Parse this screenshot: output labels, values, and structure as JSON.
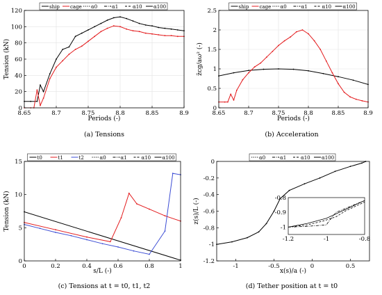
{
  "chart_data": [
    {
      "id": "a",
      "type": "line",
      "caption": "(a) Tensions",
      "xlabel": "Periods (-)",
      "ylabel": "Tension (kN)",
      "xlim": [
        8.65,
        8.9
      ],
      "ylim": [
        0,
        120
      ],
      "xticks": [
        8.65,
        8.7,
        8.75,
        8.8,
        8.85,
        8.9
      ],
      "xtick_labels": [
        "8.65",
        "8.7",
        "8.75",
        "8.8",
        "8.85",
        "8.9"
      ],
      "yticks": [
        0,
        20,
        40,
        60,
        80,
        100,
        120
      ],
      "ytick_labels": [
        "0",
        "20",
        "40",
        "60",
        "80",
        "100",
        "120"
      ],
      "grid": true,
      "legend_position": "top",
      "legend": [
        {
          "label": "ship",
          "color": "#000000",
          "dash": "solid"
        },
        {
          "label": "cage",
          "color": "#e31a1c",
          "dash": "solid"
        },
        {
          "label": "α0",
          "color": "#000000",
          "dash": "dotted"
        },
        {
          "label": "α1",
          "color": "#000000",
          "dash": "dashdot"
        },
        {
          "label": "α10",
          "color": "#000000",
          "dash": "dashed"
        },
        {
          "label": "α100",
          "color": "#000000",
          "dash": "solid"
        }
      ],
      "series": [
        {
          "name": "ship",
          "color": "#000000",
          "x": [
            8.65,
            8.66,
            8.67,
            8.675,
            8.68,
            8.69,
            8.7,
            8.71,
            8.72,
            8.73,
            8.74,
            8.75,
            8.76,
            8.77,
            8.78,
            8.79,
            8.8,
            8.81,
            8.82,
            8.83,
            8.84,
            8.85,
            8.86,
            8.87,
            8.88,
            8.89,
            8.9
          ],
          "y": [
            8,
            8,
            8,
            28,
            20,
            42,
            60,
            72,
            75,
            88,
            92,
            96,
            100,
            104,
            108,
            111,
            112,
            110,
            107,
            104,
            102,
            101,
            99,
            98,
            97,
            96,
            95
          ]
        },
        {
          "name": "cage",
          "color": "#e31a1c",
          "x": [
            8.65,
            8.66,
            8.665,
            8.67,
            8.675,
            8.68,
            8.69,
            8.7,
            8.71,
            8.72,
            8.73,
            8.74,
            8.75,
            8.76,
            8.77,
            8.78,
            8.79,
            8.8,
            8.81,
            8.82,
            8.83,
            8.84,
            8.85,
            8.86,
            8.87,
            8.88,
            8.89,
            8.9
          ],
          "y": [
            0,
            0,
            0,
            22,
            3,
            12,
            36,
            50,
            58,
            66,
            72,
            76,
            82,
            88,
            94,
            98,
            101,
            100,
            97,
            95,
            94,
            92,
            91,
            90,
            89,
            89,
            88,
            88
          ]
        }
      ]
    },
    {
      "id": "b",
      "type": "line",
      "caption": "(b) Acceleration",
      "xlabel": "Periods (-)",
      "ylabel": "z̈cg/aω² (-)",
      "xlim": [
        8.65,
        8.9
      ],
      "ylim": [
        0,
        2.5
      ],
      "xticks": [
        8.65,
        8.7,
        8.75,
        8.8,
        8.85,
        8.9
      ],
      "xtick_labels": [
        "8.65",
        "8.7",
        "8.75",
        "8.8",
        "8.85",
        "8.9"
      ],
      "yticks": [
        0,
        0.5,
        1,
        1.5,
        2,
        2.5
      ],
      "ytick_labels": [
        "0",
        "0.5",
        "1",
        "1.5",
        "2",
        "2.5"
      ],
      "grid": true,
      "legend_position": "top",
      "legend": [
        {
          "label": "ship",
          "color": "#000000",
          "dash": "solid"
        },
        {
          "label": "cage",
          "color": "#e31a1c",
          "dash": "solid"
        },
        {
          "label": "α0",
          "color": "#000000",
          "dash": "dotted"
        },
        {
          "label": "α1",
          "color": "#000000",
          "dash": "dashdot"
        },
        {
          "label": "α10",
          "color": "#000000",
          "dash": "dashed"
        },
        {
          "label": "α100",
          "color": "#000000",
          "dash": "solid"
        }
      ],
      "series": [
        {
          "name": "ship",
          "color": "#000000",
          "x": [
            8.65,
            8.675,
            8.7,
            8.725,
            8.75,
            8.775,
            8.8,
            8.825,
            8.85,
            8.875,
            8.9
          ],
          "y": [
            0.82,
            0.9,
            0.96,
            0.99,
            1.0,
            0.99,
            0.95,
            0.88,
            0.8,
            0.71,
            0.6
          ]
        },
        {
          "name": "cage",
          "color": "#e31a1c",
          "x": [
            8.65,
            8.66,
            8.665,
            8.67,
            8.675,
            8.68,
            8.69,
            8.7,
            8.71,
            8.72,
            8.73,
            8.74,
            8.75,
            8.76,
            8.77,
            8.78,
            8.79,
            8.8,
            8.81,
            8.82,
            8.83,
            8.84,
            8.85,
            8.86,
            8.87,
            8.88,
            8.89,
            8.9
          ],
          "y": [
            0.15,
            0.15,
            0.15,
            0.35,
            0.2,
            0.45,
            0.72,
            0.9,
            1.05,
            1.15,
            1.3,
            1.45,
            1.6,
            1.72,
            1.82,
            1.95,
            2.0,
            1.9,
            1.72,
            1.5,
            1.2,
            0.9,
            0.62,
            0.4,
            0.28,
            0.22,
            0.18,
            0.15
          ]
        }
      ]
    },
    {
      "id": "c",
      "type": "line",
      "caption": "(c) Tensions at t = t0, t1, t2",
      "xlabel": "s/L (-)",
      "ylabel": "Tension (kN)",
      "xlim": [
        0,
        1
      ],
      "ylim": [
        0,
        15
      ],
      "xticks": [
        0,
        0.2,
        0.4,
        0.6,
        0.8,
        1
      ],
      "xtick_labels": [
        "0",
        "0.2",
        "0.4",
        "0.6",
        "0.8",
        "1"
      ],
      "yticks": [
        0,
        5,
        10,
        15
      ],
      "ytick_labels": [
        "0",
        "5",
        "10",
        "15"
      ],
      "grid": false,
      "legend_position": "top",
      "legend": [
        {
          "label": "t0",
          "color": "#000000",
          "dash": "solid"
        },
        {
          "label": "t1",
          "color": "#e31a1c",
          "dash": "solid"
        },
        {
          "label": "t2",
          "color": "#3b4cd4",
          "dash": "solid"
        },
        {
          "label": "α0",
          "color": "#000000",
          "dash": "dotted"
        },
        {
          "label": "α1",
          "color": "#000000",
          "dash": "dashdot"
        },
        {
          "label": "α10",
          "color": "#000000",
          "dash": "dashed"
        },
        {
          "label": "α100",
          "color": "#000000",
          "dash": "solid"
        }
      ],
      "series": [
        {
          "name": "t0",
          "color": "#000000",
          "x": [
            0,
            1
          ],
          "y": [
            7.4,
            0.1
          ]
        },
        {
          "name": "t1",
          "color": "#e31a1c",
          "x": [
            0,
            0.2,
            0.4,
            0.55,
            0.62,
            0.67,
            0.72,
            0.8,
            0.9,
            1
          ],
          "y": [
            5.8,
            4.7,
            3.6,
            2.9,
            6.5,
            10.2,
            8.6,
            7.8,
            6.8,
            6.0
          ]
        },
        {
          "name": "t2",
          "color": "#3b4cd4",
          "x": [
            0,
            0.1,
            0.2,
            0.3,
            0.4,
            0.5,
            0.6,
            0.7,
            0.8,
            0.9,
            0.95,
            1
          ],
          "y": [
            5.5,
            4.9,
            4.3,
            3.8,
            3.2,
            2.6,
            2.1,
            1.5,
            1.0,
            4.5,
            13.2,
            13.0
          ]
        }
      ]
    },
    {
      "id": "d",
      "type": "line",
      "caption": "(d) Tether position at t = t0",
      "xlabel": "x(s)/a (-)",
      "ylabel": "z(s)/L (-)",
      "xlim": [
        -1.25,
        0.75
      ],
      "ylim": [
        -1.2,
        0
      ],
      "xticks": [
        -1,
        -0.5,
        0,
        0.5
      ],
      "xtick_labels": [
        "-1",
        "-0.5",
        "0",
        "0.5"
      ],
      "yticks": [
        -1.2,
        -1,
        -0.8,
        -0.6,
        -0.4,
        -0.2,
        0
      ],
      "ytick_labels": [
        "-1.2",
        "-1",
        "-0.8",
        "-0.6",
        "-0.4",
        "-0.2",
        "0"
      ],
      "grid": false,
      "legend_position": "top",
      "legend": [
        {
          "label": "α0",
          "color": "#000000",
          "dash": "dotted"
        },
        {
          "label": "α1",
          "color": "#000000",
          "dash": "dashdot"
        },
        {
          "label": "α10",
          "color": "#000000",
          "dash": "dashed"
        },
        {
          "label": "α100",
          "color": "#000000",
          "dash": "solid"
        }
      ],
      "series": [
        {
          "name": "α100",
          "color": "#000000",
          "x": [
            -1.25,
            -1.05,
            -0.85,
            -0.7,
            -0.6,
            -0.5,
            -0.42,
            -0.3,
            -0.1,
            0.1,
            0.3,
            0.5,
            0.65,
            0.7
          ],
          "y": [
            -1.0,
            -0.97,
            -0.92,
            -0.85,
            -0.75,
            -0.6,
            -0.45,
            -0.35,
            -0.27,
            -0.2,
            -0.12,
            -0.06,
            -0.02,
            0
          ]
        }
      ],
      "inset": {
        "xlim": [
          -1.2,
          -0.8
        ],
        "ylim": [
          -1.05,
          -0.8
        ],
        "xticks": [
          -1.2,
          -1,
          -0.8
        ],
        "xtick_labels": [
          "-1.2",
          "-1",
          "-0.8"
        ],
        "yticks": [
          -1,
          -0.9,
          -0.8
        ],
        "ytick_labels": [
          "-1",
          "-0.9",
          "-0.8"
        ],
        "series": [
          {
            "name": "α100",
            "x": [
              -1.2,
              -1.1,
              -1.0,
              -0.9,
              -0.8
            ],
            "y": [
              -1.0,
              -0.975,
              -0.94,
              -0.88,
              -0.82
            ]
          },
          {
            "name": "α10",
            "x": [
              -1.2,
              -1.1,
              -1.02,
              -0.95,
              -0.9,
              -0.8
            ],
            "y": [
              -1.0,
              -0.985,
              -0.96,
              -0.93,
              -0.89,
              -0.83
            ]
          },
          {
            "name": "α1",
            "x": [
              -1.2,
              -1.1,
              -1.0,
              -0.99,
              -0.95,
              -0.8
            ],
            "y": [
              -1.0,
              -0.995,
              -0.985,
              -0.965,
              -0.9,
              -0.82
            ]
          }
        ]
      }
    }
  ]
}
